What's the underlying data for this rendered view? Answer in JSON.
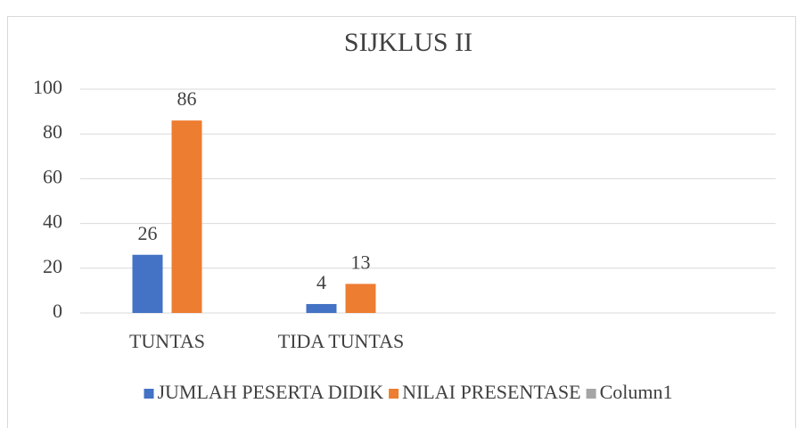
{
  "chart_data": {
    "type": "bar",
    "title": "SIJKLUS II",
    "categories": [
      "TUNTAS",
      "TIDA TUNTAS",
      null,
      null
    ],
    "series": [
      {
        "name": "JUMLAH PESERTA DIDIK",
        "color": "#4472c4",
        "values": [
          26,
          4,
          null,
          null
        ]
      },
      {
        "name": "NILAI PRESENTASE",
        "color": "#ed7d31",
        "values": [
          86,
          13,
          null,
          null
        ]
      },
      {
        "name": "Column1",
        "color": "#a5a5a5",
        "values": [
          null,
          null,
          null,
          null
        ]
      }
    ],
    "ylim": [
      0,
      100
    ],
    "yticks": [
      0,
      20,
      40,
      60,
      80,
      100
    ],
    "grid": true,
    "legend": "bottom",
    "data_labels": true
  }
}
